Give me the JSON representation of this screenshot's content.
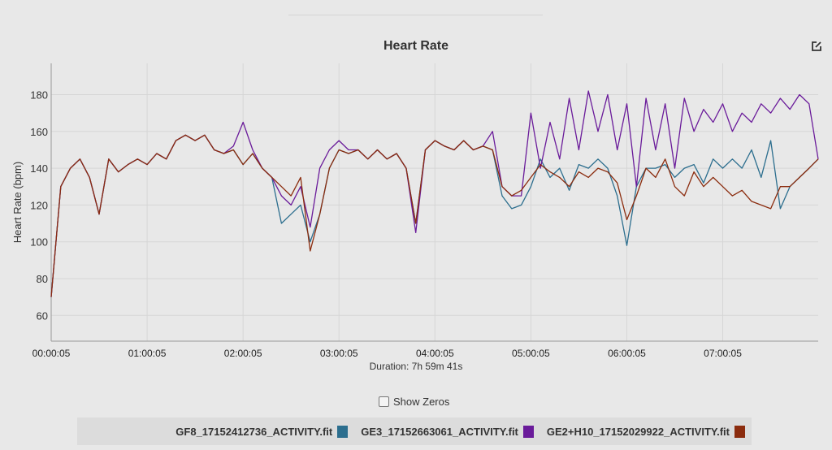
{
  "chart_data": {
    "type": "line",
    "title": "Heart Rate",
    "ylabel": "Heart Rate (bpm)",
    "xlabel": "Duration: 7h 59m 41s",
    "ylim": [
      46,
      197
    ],
    "yticks": [
      60,
      80,
      100,
      120,
      140,
      160,
      180
    ],
    "xticks": [
      "00:00:05",
      "01:00:05",
      "02:00:05",
      "03:00:05",
      "04:00:05",
      "05:00:05",
      "06:00:05",
      "07:00:05"
    ],
    "grid": true,
    "legend": "bottom",
    "x": [
      "00:00:05",
      "00:06:05",
      "00:12:05",
      "00:18:05",
      "00:24:05",
      "00:30:05",
      "00:36:05",
      "00:42:05",
      "00:48:05",
      "00:54:05",
      "01:00:05",
      "01:06:05",
      "01:12:05",
      "01:18:05",
      "01:24:05",
      "01:30:05",
      "01:36:05",
      "01:42:05",
      "01:48:05",
      "01:54:05",
      "02:00:05",
      "02:06:05",
      "02:12:05",
      "02:18:05",
      "02:24:05",
      "02:30:05",
      "02:36:05",
      "02:42:05",
      "02:48:05",
      "02:54:05",
      "03:00:05",
      "03:06:05",
      "03:12:05",
      "03:18:05",
      "03:24:05",
      "03:30:05",
      "03:36:05",
      "03:42:05",
      "03:48:05",
      "03:54:05",
      "04:00:05",
      "04:06:05",
      "04:12:05",
      "04:18:05",
      "04:24:05",
      "04:30:05",
      "04:36:05",
      "04:42:05",
      "04:48:05",
      "04:54:05",
      "05:00:05",
      "05:06:05",
      "05:12:05",
      "05:18:05",
      "05:24:05",
      "05:30:05",
      "05:36:05",
      "05:42:05",
      "05:48:05",
      "05:54:05",
      "06:00:05",
      "06:06:05",
      "06:12:05",
      "06:18:05",
      "06:24:05",
      "06:30:05",
      "06:36:05",
      "06:42:05",
      "06:48:05",
      "06:54:05",
      "07:00:05",
      "07:06:05",
      "07:12:05",
      "07:18:05",
      "07:24:05",
      "07:30:05",
      "07:36:05",
      "07:42:05",
      "07:48:05",
      "07:54:05",
      "07:59:46"
    ],
    "series": [
      {
        "name": "GF8_17152412736_ACTIVITY.fit",
        "color": "#2c6e8e",
        "values": [
          70,
          130,
          140,
          145,
          135,
          115,
          145,
          138,
          142,
          145,
          142,
          148,
          145,
          155,
          158,
          155,
          158,
          150,
          148,
          150,
          142,
          148,
          140,
          135,
          110,
          115,
          120,
          100,
          115,
          140,
          150,
          148,
          150,
          145,
          150,
          145,
          148,
          140,
          110,
          150,
          155,
          152,
          150,
          155,
          150,
          152,
          150,
          125,
          118,
          120,
          130,
          145,
          135,
          140,
          128,
          142,
          140,
          145,
          140,
          125,
          98,
          130,
          140,
          140,
          142,
          135,
          140,
          142,
          132,
          145,
          140,
          145,
          140,
          150,
          135,
          155,
          118,
          130,
          135,
          140,
          145
        ]
      },
      {
        "name": "GE3_17152663061_ACTIVITY.fit",
        "color": "#6a1b9a",
        "values": [
          70,
          130,
          140,
          145,
          135,
          115,
          145,
          138,
          142,
          145,
          142,
          148,
          145,
          155,
          158,
          155,
          158,
          150,
          148,
          152,
          165,
          150,
          140,
          135,
          125,
          120,
          130,
          108,
          140,
          150,
          155,
          150,
          150,
          145,
          150,
          145,
          148,
          140,
          105,
          150,
          155,
          152,
          150,
          155,
          150,
          152,
          160,
          130,
          125,
          125,
          170,
          140,
          165,
          145,
          178,
          150,
          182,
          160,
          180,
          150,
          175,
          130,
          178,
          150,
          175,
          140,
          178,
          160,
          172,
          165,
          175,
          160,
          170,
          165,
          175,
          170,
          178,
          172,
          180,
          175,
          145
        ]
      },
      {
        "name": "GE2+H10_17152029922_ACTIVITY.fit",
        "color": "#8b2c0e",
        "values": [
          70,
          130,
          140,
          145,
          135,
          115,
          145,
          138,
          142,
          145,
          142,
          148,
          145,
          155,
          158,
          155,
          158,
          150,
          148,
          150,
          142,
          148,
          140,
          135,
          130,
          125,
          135,
          95,
          115,
          140,
          150,
          148,
          150,
          145,
          150,
          145,
          148,
          140,
          110,
          150,
          155,
          152,
          150,
          155,
          150,
          152,
          150,
          130,
          125,
          128,
          135,
          142,
          138,
          135,
          130,
          138,
          135,
          140,
          138,
          132,
          112,
          125,
          140,
          135,
          145,
          130,
          125,
          138,
          130,
          135,
          130,
          125,
          128,
          122,
          120,
          118,
          130,
          130,
          135,
          140,
          145
        ]
      }
    ]
  },
  "controls": {
    "show_zeros_label": "Show Zeros",
    "show_zeros_checked": false
  },
  "icons": {
    "edit": "edit-square-icon"
  },
  "colors": {
    "background": "#e8e8e8",
    "legend_band": "#dcdcdc"
  }
}
